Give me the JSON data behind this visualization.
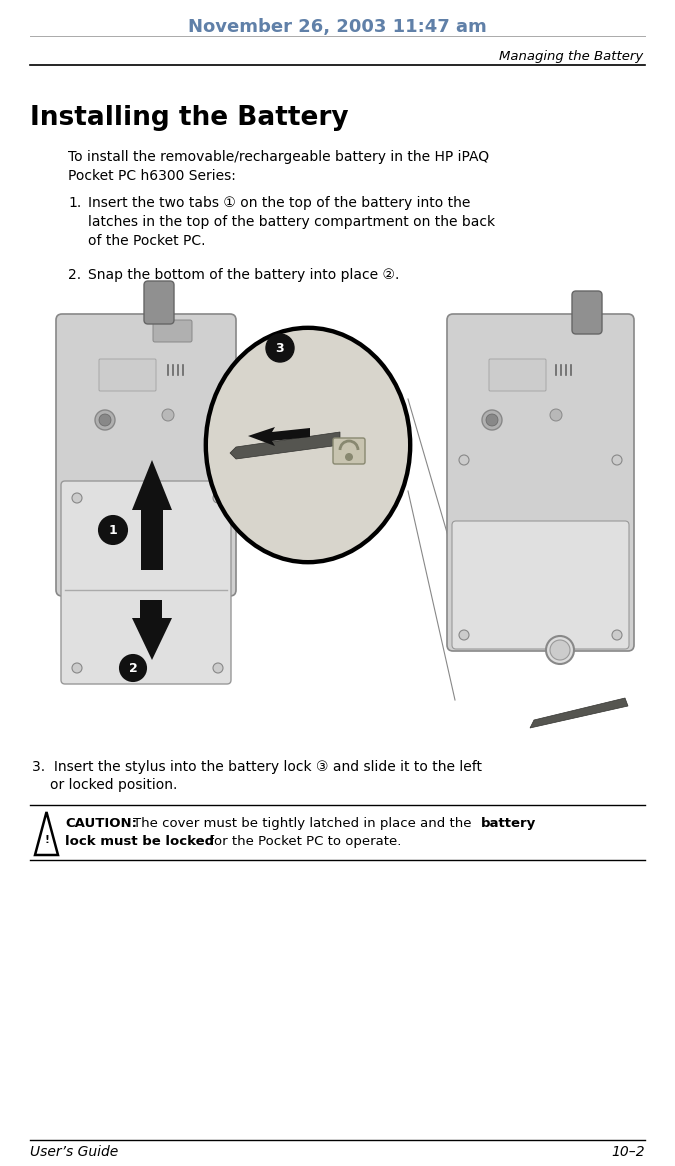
{
  "header_text": "November 26, 2003 11:47 am",
  "header_color": "#6080a8",
  "right_header": "Managing the Battery",
  "title": "Installing the Battery",
  "bg_color": "#ffffff",
  "intro_text": "To install the removable/rechargeable battery in the HP iPAQ\nPocket PC h6300 Series:",
  "step1_prefix": "1. ",
  "step1_body": "Insert the two tabs ① on the top of the battery into the\n     latches in the top of the battery compartment on the back\n     of the Pocket PC.",
  "step2_prefix": "2. ",
  "step2_body": "Snap the bottom of the battery into place ②.",
  "step3": "3.  Insert the stylus into the battery lock ③ and slide it to the left\n      or locked position.",
  "caution_line1_normal": "The cover must be tightly latched in place and the ",
  "caution_line1_bold": "battery",
  "caution_line2_bold": "lock must be locked",
  "caution_line2_normal": " for the Pocket PC to operate.",
  "footer_left": "User’s Guide",
  "footer_right": "10–2",
  "text_color": "#000000",
  "line_color": "#000000",
  "header_line_color": "#aaaaaa"
}
